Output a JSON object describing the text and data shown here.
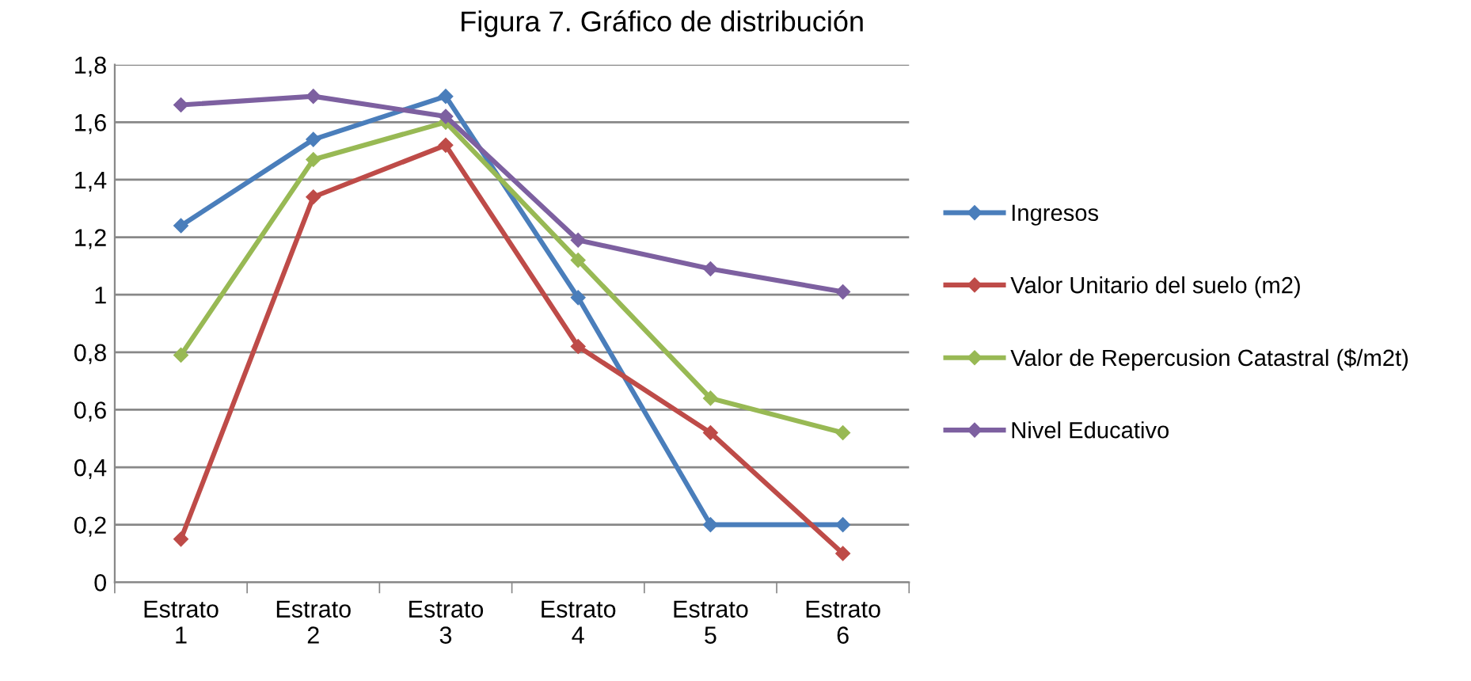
{
  "chart_data": {
    "type": "line",
    "title": "Figura 7. Gráfico de distribución",
    "categories": [
      "Estrato 1",
      "Estrato 2",
      "Estrato 3",
      "Estrato 4",
      "Estrato 5",
      "Estrato 6"
    ],
    "series": [
      {
        "name": "Ingresos",
        "color": "#4a7ebb",
        "values": [
          1.24,
          1.54,
          1.69,
          0.99,
          0.2,
          0.2
        ]
      },
      {
        "name": "Valor Unitario del suelo (m2)",
        "color": "#be4b48",
        "values": [
          0.15,
          1.34,
          1.52,
          0.82,
          0.52,
          0.1
        ]
      },
      {
        "name": "Valor de Repercusion Catastral ($/m2t)",
        "color": "#98b954",
        "values": [
          0.79,
          1.47,
          1.6,
          1.12,
          0.64,
          0.52
        ]
      },
      {
        "name": "Nivel Educativo",
        "color": "#7d60a0",
        "values": [
          1.66,
          1.69,
          1.62,
          1.19,
          1.09,
          1.01
        ]
      }
    ],
    "ylim": [
      0,
      1.8
    ],
    "yticks": [
      {
        "value": 0,
        "label": "0"
      },
      {
        "value": 0.2,
        "label": "0,2"
      },
      {
        "value": 0.4,
        "label": "0,4"
      },
      {
        "value": 0.6,
        "label": "0,6"
      },
      {
        "value": 0.8,
        "label": "0,8"
      },
      {
        "value": 1,
        "label": "1"
      },
      {
        "value": 1.2,
        "label": "1,2"
      },
      {
        "value": 1.4,
        "label": "1,4"
      },
      {
        "value": 1.6,
        "label": "1,6"
      },
      {
        "value": 1.8,
        "label": "1,8"
      }
    ],
    "grid": "y",
    "legend": "right",
    "marker": "diamond",
    "line_style": "solid"
  }
}
